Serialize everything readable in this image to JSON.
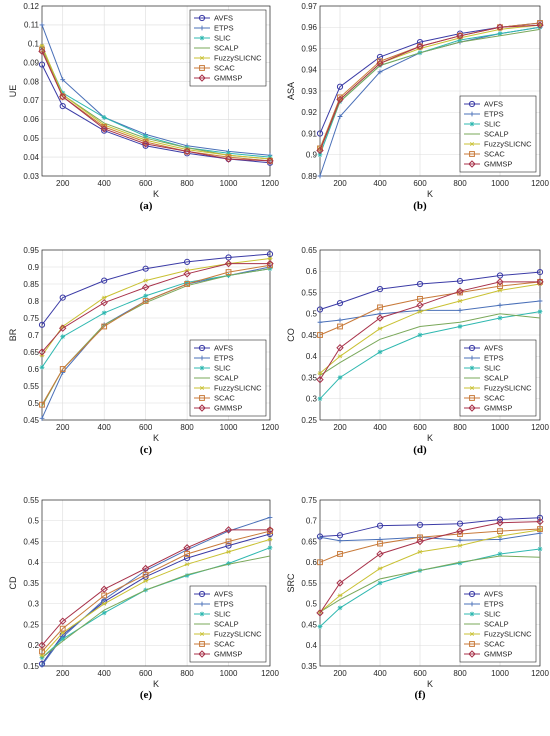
{
  "colors": {
    "AVFS": "#3b3ba6",
    "ETPS": "#4a70b8",
    "SLIC": "#2fb8b0",
    "SCALP": "#7aa85a",
    "FuzzySLICNC": "#c9c133",
    "SCAC": "#c87a3a",
    "GMMSP": "#a8324a"
  },
  "chart_data": [
    {
      "type": "line",
      "caption": "(a)",
      "xlabel": "K",
      "ylabel": "UE",
      "xlim": [
        100,
        1200
      ],
      "ylim": [
        0.03,
        0.12
      ],
      "xticks": [
        "200",
        "400",
        "600",
        "800",
        "1000",
        "1200"
      ],
      "yticks": [
        "0.03",
        "0.04",
        "0.05",
        "0.06",
        "0.07",
        "0.08",
        "0.09",
        "0.1",
        "0.11",
        "0.12"
      ],
      "legend": "top-right",
      "x": [
        100,
        200,
        400,
        600,
        800,
        1000,
        1200
      ],
      "series": [
        {
          "name": "AVFS",
          "values": [
            0.089,
            0.067,
            0.054,
            0.046,
            0.042,
            0.039,
            0.037
          ]
        },
        {
          "name": "ETPS",
          "values": [
            0.11,
            0.081,
            0.061,
            0.052,
            0.046,
            0.043,
            0.041
          ]
        },
        {
          "name": "SLIC",
          "values": [
            0.098,
            0.074,
            0.061,
            0.051,
            0.045,
            0.042,
            0.04
          ]
        },
        {
          "name": "SCALP",
          "values": [
            0.097,
            0.073,
            0.058,
            0.05,
            0.045,
            0.041,
            0.039
          ]
        },
        {
          "name": "FuzzySLICNC",
          "values": [
            0.099,
            0.073,
            0.057,
            0.049,
            0.044,
            0.041,
            0.039
          ]
        },
        {
          "name": "SCAC",
          "values": [
            0.097,
            0.072,
            0.056,
            0.048,
            0.043,
            0.04,
            0.038
          ]
        },
        {
          "name": "GMMSP",
          "values": [
            0.096,
            0.072,
            0.055,
            0.047,
            0.043,
            0.039,
            0.038
          ]
        }
      ]
    },
    {
      "type": "line",
      "caption": "(b)",
      "xlabel": "K",
      "ylabel": "ASA",
      "xlim": [
        100,
        1200
      ],
      "ylim": [
        0.89,
        0.97
      ],
      "xticks": [
        "200",
        "400",
        "600",
        "800",
        "1000",
        "1200"
      ],
      "yticks": [
        "0.89",
        "0.9",
        "0.91",
        "0.92",
        "0.93",
        "0.94",
        "0.95",
        "0.96",
        "0.97"
      ],
      "legend": "bottom-right",
      "x": [
        100,
        200,
        400,
        600,
        800,
        1000,
        1200
      ],
      "series": [
        {
          "name": "AVFS",
          "values": [
            0.91,
            0.932,
            0.946,
            0.953,
            0.957,
            0.96,
            0.962
          ]
        },
        {
          "name": "ETPS",
          "values": [
            0.89,
            0.918,
            0.939,
            0.948,
            0.953,
            0.957,
            0.96
          ]
        },
        {
          "name": "SLIC",
          "values": [
            0.9,
            0.925,
            0.942,
            0.948,
            0.954,
            0.957,
            0.96
          ]
        },
        {
          "name": "SCALP",
          "values": [
            0.902,
            0.925,
            0.942,
            0.948,
            0.953,
            0.956,
            0.959
          ]
        },
        {
          "name": "FuzzySLICNC",
          "values": [
            0.903,
            0.926,
            0.943,
            0.95,
            0.955,
            0.959,
            0.961
          ]
        },
        {
          "name": "SCAC",
          "values": [
            0.903,
            0.927,
            0.944,
            0.951,
            0.956,
            0.96,
            0.962
          ]
        },
        {
          "name": "GMMSP",
          "values": [
            0.902,
            0.926,
            0.943,
            0.951,
            0.956,
            0.96,
            0.961
          ]
        }
      ]
    },
    {
      "type": "line",
      "caption": "(c)",
      "xlabel": "K",
      "ylabel": "BR",
      "xlim": [
        100,
        1200
      ],
      "ylim": [
        0.45,
        0.95
      ],
      "xticks": [
        "200",
        "400",
        "600",
        "800",
        "1000",
        "1200"
      ],
      "yticks": [
        "0.45",
        "0.5",
        "0.55",
        "0.6",
        "0.65",
        "0.7",
        "0.75",
        "0.8",
        "0.85",
        "0.9",
        "0.95"
      ],
      "legend": "bottom-right",
      "x": [
        100,
        200,
        400,
        600,
        800,
        1000,
        1200
      ],
      "series": [
        {
          "name": "AVFS",
          "values": [
            0.73,
            0.81,
            0.86,
            0.895,
            0.915,
            0.928,
            0.938
          ]
        },
        {
          "name": "ETPS",
          "values": [
            0.455,
            0.59,
            0.73,
            0.8,
            0.85,
            0.875,
            0.9
          ]
        },
        {
          "name": "SLIC",
          "values": [
            0.605,
            0.695,
            0.765,
            0.815,
            0.855,
            0.875,
            0.895
          ]
        },
        {
          "name": "SCALP",
          "values": [
            0.49,
            0.6,
            0.73,
            0.795,
            0.845,
            0.875,
            0.895
          ]
        },
        {
          "name": "FuzzySLICNC",
          "values": [
            0.64,
            0.725,
            0.81,
            0.86,
            0.89,
            0.91,
            0.925
          ]
        },
        {
          "name": "SCAC",
          "values": [
            0.495,
            0.6,
            0.725,
            0.8,
            0.85,
            0.885,
            0.905
          ]
        },
        {
          "name": "GMMSP",
          "values": [
            0.65,
            0.72,
            0.795,
            0.84,
            0.88,
            0.91,
            0.91
          ]
        }
      ]
    },
    {
      "type": "line",
      "caption": "(d)",
      "xlabel": "K",
      "ylabel": "CO",
      "xlim": [
        100,
        1200
      ],
      "ylim": [
        0.25,
        0.65
      ],
      "xticks": [
        "200",
        "400",
        "600",
        "800",
        "1000",
        "1200"
      ],
      "yticks": [
        "0.25",
        "0.3",
        "0.35",
        "0.4",
        "0.45",
        "0.5",
        "0.55",
        "0.6",
        "0.65"
      ],
      "legend": "bottom-right",
      "x": [
        100,
        200,
        400,
        600,
        800,
        1000,
        1200
      ],
      "series": [
        {
          "name": "AVFS",
          "values": [
            0.51,
            0.525,
            0.558,
            0.57,
            0.577,
            0.59,
            0.598
          ]
        },
        {
          "name": "ETPS",
          "values": [
            0.48,
            0.485,
            0.5,
            0.508,
            0.508,
            0.52,
            0.53
          ]
        },
        {
          "name": "SLIC",
          "values": [
            0.3,
            0.35,
            0.41,
            0.45,
            0.47,
            0.49,
            0.505
          ]
        },
        {
          "name": "SCALP",
          "values": [
            0.355,
            0.385,
            0.44,
            0.47,
            0.48,
            0.5,
            0.49
          ]
        },
        {
          "name": "FuzzySLICNC",
          "values": [
            0.36,
            0.4,
            0.465,
            0.505,
            0.53,
            0.555,
            0.57
          ]
        },
        {
          "name": "SCAC",
          "values": [
            0.45,
            0.47,
            0.515,
            0.535,
            0.55,
            0.565,
            0.575
          ]
        },
        {
          "name": "GMMSP",
          "values": [
            0.345,
            0.42,
            0.49,
            0.52,
            0.553,
            0.575,
            0.575
          ]
        }
      ]
    },
    {
      "type": "line",
      "caption": "(e)",
      "xlabel": "K",
      "ylabel": "CD",
      "xlim": [
        100,
        1200
      ],
      "ylim": [
        0.15,
        0.55
      ],
      "xticks": [
        "200",
        "400",
        "600",
        "800",
        "1000",
        "1200"
      ],
      "yticks": [
        "0.15",
        "0.2",
        "0.25",
        "0.3",
        "0.35",
        "0.4",
        "0.45",
        "0.5",
        "0.55"
      ],
      "legend": "bottom-right",
      "x": [
        100,
        200,
        400,
        600,
        800,
        1000,
        1200
      ],
      "series": [
        {
          "name": "AVFS",
          "values": [
            0.155,
            0.225,
            0.305,
            0.365,
            0.41,
            0.44,
            0.468
          ]
        },
        {
          "name": "ETPS",
          "values": [
            0.152,
            0.22,
            0.31,
            0.38,
            0.43,
            0.475,
            0.508
          ]
        },
        {
          "name": "SLIC",
          "values": [
            0.17,
            0.215,
            0.278,
            0.333,
            0.368,
            0.397,
            0.435
          ]
        },
        {
          "name": "SCALP",
          "values": [
            0.17,
            0.21,
            0.285,
            0.333,
            0.37,
            0.395,
            0.415
          ]
        },
        {
          "name": "FuzzySLICNC",
          "values": [
            0.175,
            0.23,
            0.3,
            0.355,
            0.395,
            0.425,
            0.455
          ]
        },
        {
          "name": "SCAC",
          "values": [
            0.185,
            0.24,
            0.32,
            0.37,
            0.42,
            0.45,
            0.475
          ]
        },
        {
          "name": "GMMSP",
          "values": [
            0.2,
            0.258,
            0.335,
            0.385,
            0.435,
            0.478,
            0.478
          ]
        }
      ]
    },
    {
      "type": "line",
      "caption": "(f)",
      "xlabel": "K",
      "ylabel": "SRC",
      "xlim": [
        100,
        1200
      ],
      "ylim": [
        0.35,
        0.75
      ],
      "xticks": [
        "200",
        "400",
        "600",
        "800",
        "1000",
        "1200"
      ],
      "yticks": [
        "0.35",
        "0.4",
        "0.45",
        "0.5",
        "0.55",
        "0.6",
        "0.65",
        "0.7",
        "0.75"
      ],
      "legend": "bottom-right",
      "x": [
        100,
        200,
        400,
        600,
        800,
        1000,
        1200
      ],
      "series": [
        {
          "name": "AVFS",
          "values": [
            0.662,
            0.665,
            0.688,
            0.69,
            0.693,
            0.703,
            0.707
          ]
        },
        {
          "name": "ETPS",
          "values": [
            0.66,
            0.652,
            0.655,
            0.66,
            0.653,
            0.655,
            0.67
          ]
        },
        {
          "name": "SLIC",
          "values": [
            0.445,
            0.49,
            0.55,
            0.58,
            0.598,
            0.62,
            0.632
          ]
        },
        {
          "name": "SCALP",
          "values": [
            0.48,
            0.51,
            0.56,
            0.58,
            0.6,
            0.615,
            0.612
          ]
        },
        {
          "name": "FuzzySLICNC",
          "values": [
            0.48,
            0.52,
            0.585,
            0.625,
            0.64,
            0.663,
            0.678
          ]
        },
        {
          "name": "SCAC",
          "values": [
            0.6,
            0.62,
            0.645,
            0.66,
            0.668,
            0.675,
            0.68
          ]
        },
        {
          "name": "GMMSP",
          "values": [
            0.478,
            0.55,
            0.62,
            0.65,
            0.675,
            0.695,
            0.698
          ]
        }
      ]
    }
  ]
}
